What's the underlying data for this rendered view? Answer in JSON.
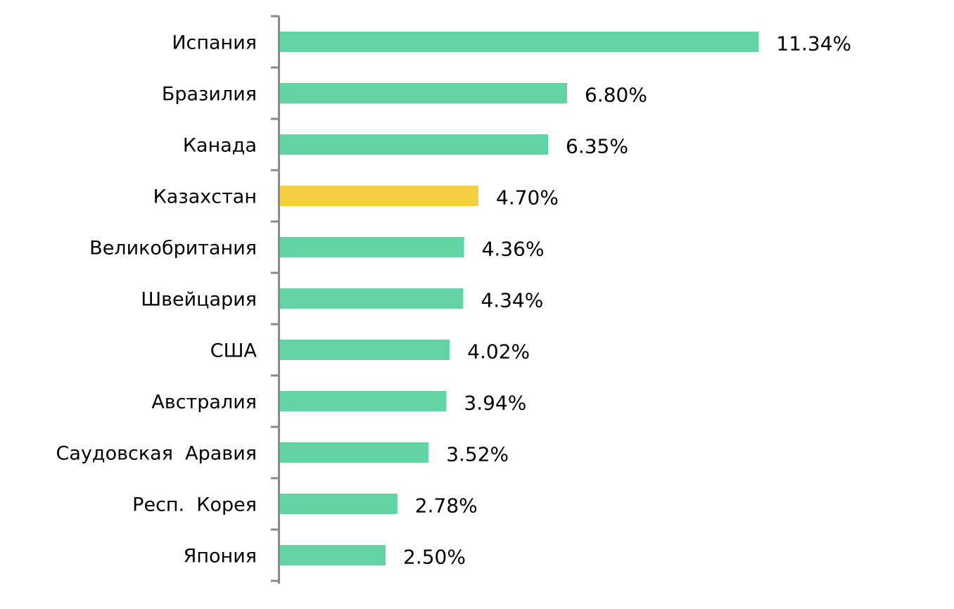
{
  "chart_data": {
    "type": "bar",
    "orientation": "horizontal",
    "categories": [
      "Испания",
      "Бразилия",
      "Канада",
      "Казахстан",
      "Великобритания",
      "Швейцария",
      "США",
      "Австралия",
      "Саудовская  Аравия",
      "Респ.  Корея",
      "Япония"
    ],
    "values": [
      11.34,
      6.8,
      6.35,
      4.7,
      4.36,
      4.34,
      4.02,
      3.94,
      3.52,
      2.78,
      2.5
    ],
    "data_labels": [
      "11.34%",
      "6.80%",
      "6.35%",
      "4.70%",
      "4.36%",
      "4.34%",
      "4.02%",
      "3.94%",
      "3.52%",
      "2.78%",
      "2.50%"
    ],
    "highlight": "Казахстан",
    "title": "",
    "xlabel": "",
    "ylabel": "",
    "xlim": [
      0,
      11.34
    ],
    "grid": false,
    "legend": "none",
    "colors": {
      "default": "#62d3a4",
      "highlight": "#f5cf45",
      "axis": "#8a8a8a"
    }
  }
}
